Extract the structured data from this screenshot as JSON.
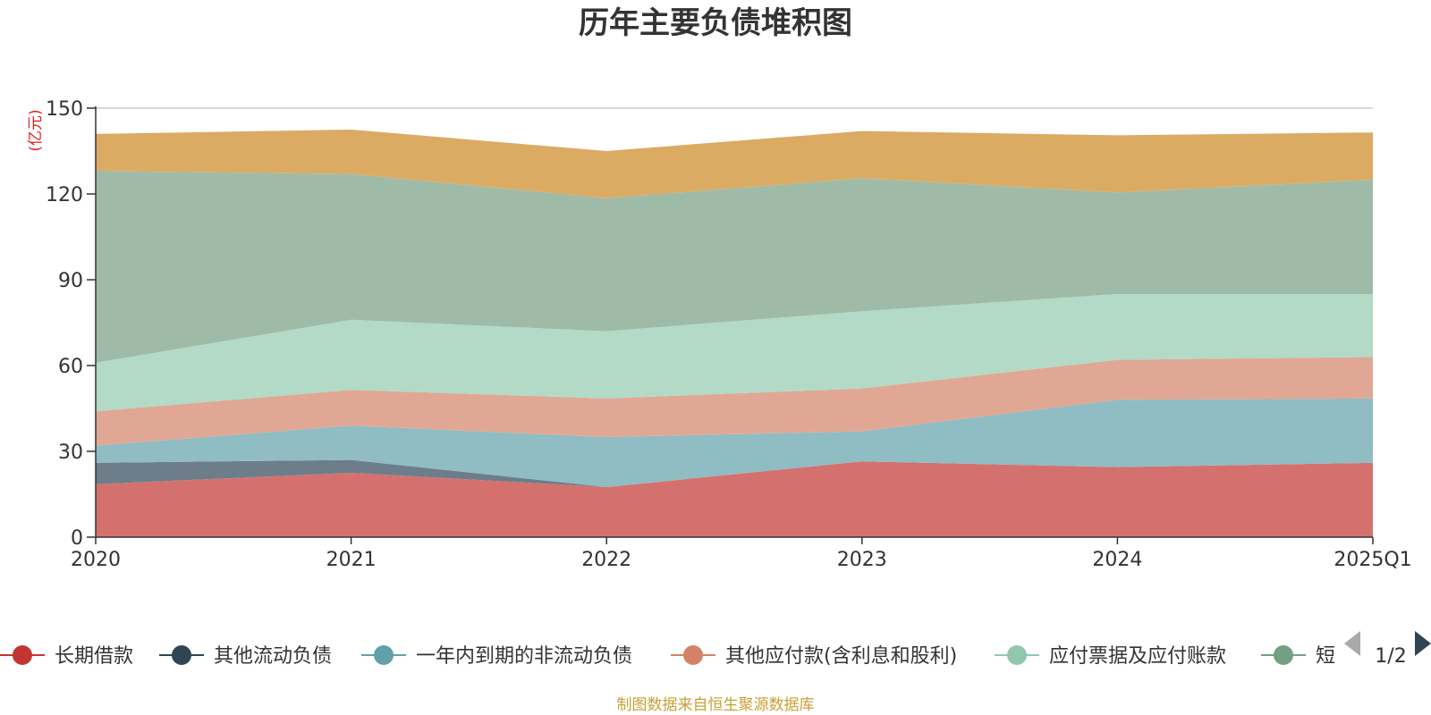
{
  "chart_data": {
    "type": "area",
    "stacked": true,
    "title": "历年主要负债堆积图",
    "ylabel": "(亿元)",
    "ylim": [
      0,
      150
    ],
    "yticks": [
      0,
      30,
      60,
      90,
      120,
      150
    ],
    "categories": [
      "2020",
      "2021",
      "2022",
      "2023",
      "2024",
      "2025Q1"
    ],
    "grid": true,
    "legend_position": "bottom",
    "series": [
      {
        "name": "长期借款",
        "color": "#c23531",
        "fill": "#d4716f",
        "values": [
          18.5,
          22.5,
          17.5,
          26.5,
          24.5,
          26.0
        ]
      },
      {
        "name": "其他流动负债",
        "color": "#2f4554",
        "fill": "#6d7d8a",
        "values": [
          7.5,
          4.5,
          0.0,
          0.0,
          0.0,
          0.0
        ]
      },
      {
        "name": "一年内到期的非流动负债",
        "color": "#61a0a8",
        "fill": "#90bcc3",
        "values": [
          6.0,
          12.0,
          17.5,
          10.5,
          23.5,
          22.5
        ]
      },
      {
        "name": "其他应付款(含利息和股利)",
        "color": "#d48265",
        "fill": "#e0a894",
        "values": [
          12.0,
          12.5,
          13.5,
          15.0,
          14.0,
          14.5
        ]
      },
      {
        "name": "应付票据及应付账款",
        "color": "#91c7ae",
        "fill": "#b2dac7",
        "values": [
          17.0,
          24.5,
          23.5,
          27.0,
          23.0,
          22.0
        ]
      },
      {
        "name": "短期借款",
        "color": "#749f83",
        "fill": "#9fbba8",
        "values": [
          67.0,
          51.0,
          46.5,
          46.5,
          35.5,
          40.0
        ]
      },
      {
        "name": "",
        "color": "#ca8622",
        "fill": "#dbab63",
        "values": [
          13.0,
          15.5,
          16.5,
          16.5,
          20.0,
          16.5
        ]
      }
    ]
  },
  "legend": {
    "visible_labels": [
      "长期借款",
      "其他流动负债",
      "一年内到期的非流动负债",
      "其他应付款(含利息和股利)",
      "应付票据及应付账款",
      "短"
    ],
    "page": "1/2"
  },
  "source_note": "制图数据来自恒生聚源数据库"
}
